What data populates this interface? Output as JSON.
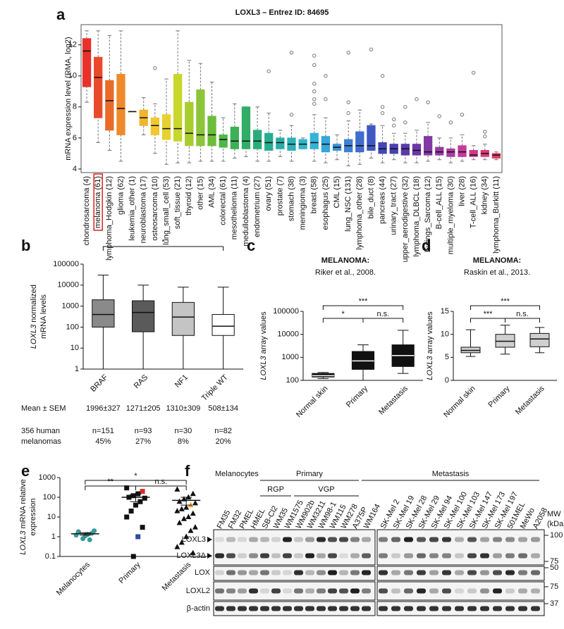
{
  "chart_data": [
    {
      "type": "box",
      "label": "a",
      "title": "LOXL3 – Entrez ID: 84695",
      "y_label": "mRNA expression level (RMA, log2)",
      "categories": [
        "chondrosarcoma (4)",
        "melanoma (61)",
        "lymphoma_Hodgkin (12)",
        "glioma (62)",
        "leukemia_other (1)",
        "neuroblastoma (17)",
        "osteosarcoma (10)",
        "lung_small_cell (53)",
        "soft_tissue (21)",
        "thyroid (12)",
        "other (15)",
        "AML (34)",
        "colorectal (61)",
        "mesothelioma (11)",
        "medulloblastoma (4)",
        "endometrium (27)",
        "ovary (51)",
        "prostate (7)",
        "stomach (38)",
        "meningioma (3)",
        "breast (58)",
        "esophagus (25)",
        "CML (15)",
        "lung_NSC (131)",
        "lymphoma_other (28)",
        "bile_duct (8)",
        "pancreas (44)",
        "urinary_tract (27)",
        "upper_aerodigestive (32)",
        "lymphoma_DLBCL (18)",
        "Ewings_Sarcoma (12)",
        "B-cell_ALL (15)",
        "multiple_myeloma (30)",
        "liver (28)",
        "T-cell_ALL (16)",
        "kidney (34)",
        "lymphoma_Burkitt (11)"
      ],
      "stats": [
        [
          8.3,
          9.3,
          11.6,
          12.4,
          12.9
        ],
        [
          5.7,
          7.3,
          9.9,
          11.2,
          12.9
        ],
        [
          5.2,
          6.5,
          8.4,
          9.7,
          12.6
        ],
        [
          4.5,
          6.2,
          7.9,
          10.1,
          12.9
        ],
        [
          7.7,
          7.7,
          7.7,
          7.7,
          7.7
        ],
        [
          6.2,
          6.8,
          7.3,
          7.8,
          8.6
        ],
        [
          5.0,
          6.2,
          6.8,
          7.3,
          8.2
        ],
        [
          4.3,
          5.9,
          6.6,
          7.5,
          9.8
        ],
        [
          4.4,
          5.8,
          6.6,
          10.1,
          12.9
        ],
        [
          4.4,
          5.5,
          6.3,
          8.3,
          11.0
        ],
        [
          4.5,
          5.5,
          6.2,
          9.1,
          10.8
        ],
        [
          4.5,
          5.5,
          6.2,
          7.4,
          9.6
        ],
        [
          4.5,
          5.4,
          5.9,
          6.2,
          7.3
        ],
        [
          4.7,
          5.3,
          5.8,
          6.7,
          8.2
        ],
        [
          4.8,
          5.3,
          5.8,
          8.0,
          8.0
        ],
        [
          4.5,
          5.3,
          5.8,
          6.5,
          8.0
        ],
        [
          4.5,
          5.2,
          5.7,
          6.3,
          7.6
        ],
        [
          4.8,
          5.3,
          5.7,
          6.0,
          6.5
        ],
        [
          4.5,
          5.2,
          5.6,
          6.0,
          6.8
        ],
        [
          5.3,
          5.3,
          5.6,
          5.9,
          6.0
        ],
        [
          4.5,
          5.3,
          5.7,
          6.3,
          7.5
        ],
        [
          4.4,
          5.1,
          5.6,
          6.1,
          7.3
        ],
        [
          4.6,
          5.2,
          5.4,
          5.6,
          6.2
        ],
        [
          4.2,
          5.1,
          5.5,
          5.9,
          7.1
        ],
        [
          4.3,
          5.1,
          5.5,
          6.4,
          7.8
        ],
        [
          4.7,
          5.2,
          5.5,
          6.8,
          6.9
        ],
        [
          4.4,
          5.0,
          5.3,
          5.7,
          6.8
        ],
        [
          4.6,
          5.0,
          5.3,
          5.6,
          6.3
        ],
        [
          4.4,
          4.9,
          5.3,
          5.6,
          6.3
        ],
        [
          4.4,
          4.9,
          5.2,
          5.6,
          6.5
        ],
        [
          4.5,
          4.9,
          5.1,
          6.1,
          7.0
        ],
        [
          4.6,
          4.9,
          5.1,
          5.4,
          6.0
        ],
        [
          4.4,
          4.8,
          5.1,
          5.3,
          6.0
        ],
        [
          4.5,
          4.8,
          5.1,
          5.5,
          6.2
        ],
        [
          4.6,
          4.8,
          4.9,
          5.2,
          5.5
        ],
        [
          4.6,
          4.8,
          5.0,
          5.2,
          5.6
        ],
        [
          4.6,
          4.7,
          4.9,
          5.0,
          5.1
        ]
      ],
      "outliers": [
        [],
        [],
        [],
        [],
        [],
        [],
        [
          10.5
        ],
        [],
        [],
        [],
        [],
        [],
        [],
        [],
        [],
        [],
        [
          10.3
        ],
        [],
        [
          7.5,
          11.5
        ],
        [],
        [
          8.2,
          8.5,
          9.0,
          9.5,
          10.7,
          11.3
        ],
        [
          8.5,
          10.0
        ],
        [],
        [
          7.6,
          8.3,
          11.5
        ],
        [],
        [
          11.7
        ],
        [
          7.6,
          8.0,
          10.0
        ],
        [
          6.8,
          7.2
        ],
        [
          7.0,
          8.0
        ],
        [
          8.5
        ],
        [
          8.3
        ],
        [
          7.4
        ],
        [
          7.0
        ],
        [
          7.5
        ],
        [
          10.2
        ],
        [
          6.1,
          6.4
        ],
        []
      ],
      "colors": [
        "#e8312a",
        "#e94a2b",
        "#ea6a2a",
        "#ee8a2b",
        "#e8a12c",
        "#f0b52c",
        "#f2c82e",
        "#e6d22f",
        "#c9d62b",
        "#a8cc2c",
        "#8cc43a",
        "#6cbe3a",
        "#4fb845",
        "#3cb156",
        "#31ad66",
        "#2aac7a",
        "#28ad8f",
        "#29aea6",
        "#2cb2ba",
        "#31b5c9",
        "#34b3d8",
        "#37a6db",
        "#3b94d8",
        "#3e80d3",
        "#3f6dcc",
        "#3f58c3",
        "#4347b9",
        "#4a3eb2",
        "#5a3aab",
        "#6c37a7",
        "#8139a6",
        "#9739a4",
        "#ad3aa0",
        "#c33a9a",
        "#d13a8c",
        "#dc3a78",
        "#e23c66"
      ],
      "highlight_index": 1,
      "highlight_color": "#e02020",
      "ylim": [
        3.77,
        13.3
      ],
      "yticks": [
        4,
        6,
        8,
        10,
        12
      ]
    },
    {
      "type": "box",
      "label": "b",
      "y_label": [
        "LOXL3 normalized",
        "mRNA levels"
      ],
      "log": true,
      "categories": [
        "BRAF",
        "RAS",
        "NF1",
        "Triple WT"
      ],
      "stats": [
        [
          1,
          100,
          400,
          2000,
          30000
        ],
        [
          1,
          60,
          500,
          1800,
          10000
        ],
        [
          1,
          40,
          300,
          1500,
          8000
        ],
        [
          1,
          40,
          110,
          400,
          8000
        ]
      ],
      "colors": [
        "#8a8a8a",
        "#5a5a5a",
        "#c4c4c4",
        "#ffffff"
      ],
      "annotations": [
        {
          "text": "*",
          "from": 0,
          "to": 3
        }
      ],
      "ylim": [
        1,
        100000
      ],
      "yticks": [
        1,
        10,
        100,
        1000,
        10000,
        100000
      ],
      "table": {
        "mean_label": "Mean ± SEM",
        "mean_sem": [
          "1996±327",
          "1271±205",
          "1310±309",
          "508±134"
        ],
        "group_label": [
          "356 human",
          "melanomas"
        ],
        "n": [
          "n=151",
          "n=93",
          "n=30",
          "n=82"
        ],
        "percent": [
          "45%",
          "27%",
          "8%",
          "20%"
        ]
      }
    },
    {
      "type": "box",
      "label": "c",
      "title": "MELANOMA:",
      "subtitle": "Riker et al., 2008.",
      "y_label": "LOXL3 array values",
      "log": true,
      "categories": [
        "Normal skin",
        "Primary",
        "Metastasis"
      ],
      "stats": [
        [
          120,
          140,
          160,
          200,
          220
        ],
        [
          100,
          300,
          700,
          1800,
          3500
        ],
        [
          200,
          400,
          1200,
          3500,
          15000
        ]
      ],
      "colors": [
        "#111111",
        "#111111",
        "#111111"
      ],
      "annotations": [
        {
          "text": "***",
          "from": 0,
          "to": 2
        },
        {
          "text": "*",
          "from": 0,
          "to": 1
        },
        {
          "text": "n.s.",
          "from": 1,
          "to": 2
        }
      ],
      "ylim": [
        100,
        100000
      ],
      "yticks": [
        100,
        1000,
        10000,
        100000
      ]
    },
    {
      "type": "box",
      "label": "d",
      "title": "MELANOMA:",
      "subtitle": "Raskin et al., 2013.",
      "y_label": "LOXL3 array values",
      "categories": [
        "Normal skin",
        "Primary",
        "Metastasis"
      ],
      "stats": [
        [
          5.2,
          6.0,
          6.5,
          7.2,
          11.0
        ],
        [
          5.7,
          7.2,
          8.5,
          10.0,
          12.0
        ],
        [
          6.0,
          7.3,
          9.0,
          10.2,
          11.5
        ]
      ],
      "colors": [
        "#cfcfcf",
        "#cfcfcf",
        "#cfcfcf"
      ],
      "annotations": [
        {
          "text": "***",
          "from": 0,
          "to": 2
        },
        {
          "text": "***",
          "from": 0,
          "to": 1
        },
        {
          "text": "n.s.",
          "from": 1,
          "to": 2
        }
      ],
      "ylim": [
        0,
        15
      ],
      "yticks": [
        0,
        5,
        10,
        15
      ]
    },
    {
      "type": "dot",
      "label": "e",
      "y_label": [
        "LOXL3 mRNA relative",
        "expression"
      ],
      "log": true,
      "categories": [
        "Melanocytes",
        "Primary",
        "Metastasis"
      ],
      "values": [
        [
          1.2,
          1.5,
          1.3,
          0.8,
          1.8,
          2.0,
          0.7,
          1.1
        ],
        [
          300,
          200,
          150,
          120,
          100,
          90,
          60,
          40,
          20,
          10,
          3,
          1,
          0.1
        ],
        [
          250,
          150,
          100,
          80,
          60,
          50,
          40,
          30,
          25,
          20,
          15,
          10,
          8,
          5,
          3,
          2,
          1,
          0.5,
          0.3,
          0.15
        ]
      ],
      "mean": [
        1.4,
        100,
        70
      ],
      "sem": [
        0.2,
        40,
        30
      ],
      "markers": [
        "circle",
        "square",
        "triangle"
      ],
      "marker_colors": [
        "#3a9a9a",
        "#111111",
        "#111111"
      ],
      "highlights": [
        {
          "category": 1,
          "index": 1,
          "color": "#d62d2d"
        },
        {
          "category": 1,
          "index": 11,
          "color": "#2f4aa0"
        },
        {
          "category": 2,
          "index": 6,
          "color": "#f0a030"
        }
      ],
      "annotations": [
        {
          "text": "*",
          "from": 0,
          "to": 2
        },
        {
          "text": "**",
          "from": 0,
          "to": 1
        },
        {
          "text": "n.s.",
          "from": 1,
          "to": 2
        }
      ],
      "ylim": [
        0.1,
        1000
      ],
      "yticks": [
        0.1,
        1,
        10,
        100,
        1000
      ]
    }
  ],
  "blot": {
    "label": "f",
    "groups": [
      {
        "name": "Melanocytes",
        "first": 0,
        "last": 3
      },
      {
        "name": "Primary",
        "first": 4,
        "last": 12
      },
      {
        "name": "Metastasis",
        "first": 13,
        "last": 26
      }
    ],
    "subgroups": [
      {
        "name": "RGP",
        "first": 4,
        "last": 6
      },
      {
        "name": "VGP",
        "first": 7,
        "last": 12
      }
    ],
    "lanes": [
      "FM35",
      "FM32",
      "PMEL",
      "HMEL",
      "SB-Cl2",
      "WM35",
      "WM1575",
      "WM902b",
      "WM3211",
      "WM98-1",
      "WM115",
      "WM278",
      "A375P",
      "WM164",
      "SK-Mel 2",
      "SK-Mel 19",
      "SK-Mel 28",
      "SK-Mel 29",
      "SK-Mel 94",
      "SK-Mel 100",
      "SK-Mel 103",
      "SK-Mel 147",
      "SK-Mel 173",
      "SK-Mel 197",
      "501MEL",
      "MeWo",
      "A2058"
    ],
    "rows": [
      "LOXL3",
      "LOXL3Δ",
      "LOX",
      "LOXL2",
      "β-actin"
    ],
    "mw_title": [
      "MW",
      "(kDa)"
    ],
    "mw_markers": [
      "100",
      "75",
      "50",
      "75",
      "37"
    ]
  }
}
